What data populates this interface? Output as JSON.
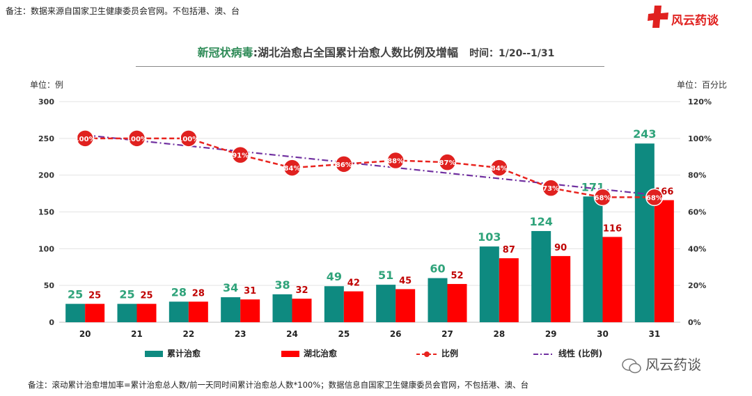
{
  "notes": {
    "top": "备注：数据来源自国家卫生健康委员会官网。不包括港、澳、台",
    "bottom": "备注：滚动累计治愈增加率=累计治愈总人数/前一天同时间累计治愈总人数*100%；数据信息自国家卫生健康委员会官网，不包括港、澳、台"
  },
  "brand": {
    "logo_text": "风云药谈",
    "watermark_text": "风云药谈"
  },
  "title": {
    "part1": "新冠状病毒",
    "part2": ":湖北治愈占全国累计治愈人数比例及增幅",
    "part3": "时间：1/20--1/31"
  },
  "units": {
    "left": "单位：例",
    "right": "单位：百分比"
  },
  "colors": {
    "teal": "#0e8a80",
    "red": "#ff0000",
    "ratio_line": "#e8231e",
    "trend_line": "#7030a0",
    "value_teal": "#2fa37a",
    "value_red": "#c00000"
  },
  "chart_data": {
    "type": "bar",
    "categories": [
      "20",
      "21",
      "22",
      "23",
      "24",
      "25",
      "26",
      "27",
      "28",
      "29",
      "30",
      "31"
    ],
    "ylim": [
      0,
      300
    ],
    "y_ticks": [
      "0",
      "50",
      "100",
      "150",
      "200",
      "250",
      "300"
    ],
    "y2lim": [
      0,
      120
    ],
    "y2_ticks": [
      "0%",
      "20%",
      "40%",
      "60%",
      "80%",
      "100%",
      "120%"
    ],
    "series": [
      {
        "name": "累计治愈",
        "type": "bar",
        "values": [
          25,
          25,
          28,
          34,
          38,
          49,
          51,
          60,
          103,
          124,
          171,
          243
        ]
      },
      {
        "name": "湖北治愈",
        "type": "bar",
        "values": [
          25,
          25,
          28,
          31,
          32,
          42,
          45,
          52,
          87,
          90,
          116,
          166
        ]
      },
      {
        "name": "比例",
        "type": "line",
        "axis": "right",
        "values": [
          100,
          100,
          100,
          91,
          84,
          86,
          88,
          87,
          84,
          73,
          68,
          68
        ],
        "labels": [
          "100%",
          "100%",
          "100%",
          "91%",
          "84%",
          "86%",
          "88%",
          "87%",
          "84%",
          "73%",
          "68%",
          "68%"
        ]
      },
      {
        "name": "线性 (比例)",
        "type": "trendline",
        "axis": "right",
        "start": 101.8,
        "end": 69.3
      }
    ],
    "grid": true,
    "legend": "bottom"
  }
}
